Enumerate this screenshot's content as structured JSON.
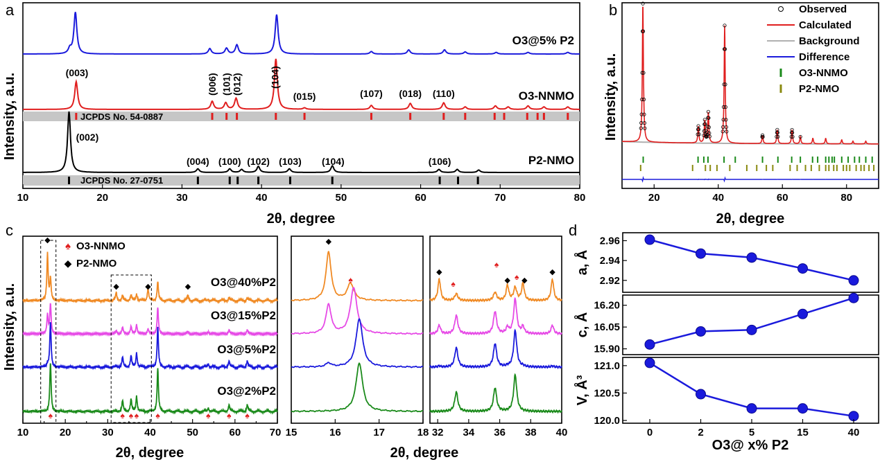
{
  "chart_data": [
    {
      "panel": "a",
      "type": "line",
      "xlabel": "2θ, degree",
      "ylabel": "Intensity, a.u.",
      "xlim": [
        10,
        80
      ],
      "xticks": [
        10,
        20,
        30,
        40,
        50,
        60,
        70,
        80
      ],
      "series": [
        {
          "name": "O3@5% P2",
          "color": "#1a1adc",
          "peaks": [
            [
              15.9,
              0.12
            ],
            [
              16.6,
              1.0
            ],
            [
              33.5,
              0.13
            ],
            [
              35.6,
              0.14
            ],
            [
              36.9,
              0.22
            ],
            [
              41.9,
              0.95
            ],
            [
              53.8,
              0.06
            ],
            [
              58.5,
              0.1
            ],
            [
              63.0,
              0.1
            ],
            [
              65.6,
              0.05
            ],
            [
              69.5,
              0.04
            ],
            [
              73.5,
              0.04
            ],
            [
              78.5,
              0.04
            ]
          ]
        },
        {
          "name": "O3-NNMO",
          "color": "#e01e1e",
          "peaks": [
            [
              16.7,
              0.55
            ],
            [
              33.8,
              0.16
            ],
            [
              35.5,
              0.13
            ],
            [
              36.8,
              0.22
            ],
            [
              41.8,
              1.0
            ],
            [
              45.4,
              0.03
            ],
            [
              53.8,
              0.08
            ],
            [
              58.7,
              0.12
            ],
            [
              62.9,
              0.13
            ],
            [
              65.6,
              0.05
            ],
            [
              69.4,
              0.07
            ],
            [
              71.0,
              0.05
            ],
            [
              73.5,
              0.07
            ],
            [
              75.5,
              0.05
            ],
            [
              78.5,
              0.05
            ]
          ]
        },
        {
          "name": "P2-NMO",
          "color": "#000000",
          "peaks": [
            [
              15.8,
              1.0
            ],
            [
              32.0,
              0.06
            ],
            [
              36.0,
              0.06
            ],
            [
              37.5,
              0.05
            ],
            [
              39.6,
              0.1
            ],
            [
              43.5,
              0.06
            ],
            [
              48.9,
              0.11
            ],
            [
              62.3,
              0.05
            ],
            [
              64.6,
              0.05
            ],
            [
              67.3,
              0.04
            ]
          ]
        }
      ],
      "series_labels": [
        "O3@5% P2",
        "O3-NNMO",
        "P2-NMO"
      ],
      "references": [
        {
          "label": "JCPDS No. 54-0887",
          "color": "#e01e1e",
          "positions": [
            16.7,
            33.8,
            35.6,
            36.9,
            41.8,
            45.4,
            53.8,
            58.7,
            62.9,
            65.6,
            69.3,
            70.5,
            73.4,
            74.7,
            75.5,
            78.5
          ]
        },
        {
          "label": "JCPDS No. 27-0751",
          "color": "#000000",
          "positions": [
            15.8,
            32.0,
            36.0,
            37.0,
            39.6,
            43.6,
            48.9,
            62.4,
            64.7,
            67.2
          ]
        }
      ],
      "annotations_o3": [
        {
          "text": "(003)",
          "x": 16.8
        },
        {
          "text": "(006)",
          "x": 33.8,
          "rotated": true
        },
        {
          "text": "(101)",
          "x": 35.6,
          "rotated": true
        },
        {
          "text": "(012)",
          "x": 36.9,
          "rotated": true
        },
        {
          "text": "(104)",
          "x": 41.7,
          "rotated": true
        },
        {
          "text": "(015)",
          "x": 45.4
        },
        {
          "text": "(107)",
          "x": 53.8
        },
        {
          "text": "(018)",
          "x": 58.7
        },
        {
          "text": "(110)",
          "x": 62.9
        }
      ],
      "annotations_p2": [
        {
          "text": "(002)",
          "x": 18.1
        },
        {
          "text": "(004)",
          "x": 32.0
        },
        {
          "text": "(100)",
          "x": 36.0
        },
        {
          "text": "(102)",
          "x": 39.6
        },
        {
          "text": "(103)",
          "x": 43.6
        },
        {
          "text": "(104)",
          "x": 49.0
        },
        {
          "text": "(106)",
          "x": 62.4
        }
      ]
    },
    {
      "panel": "b",
      "type": "scatter",
      "xlabel": "2θ, degree",
      "ylabel": "Intensity, a.u.",
      "xlim": [
        10,
        90
      ],
      "xticks": [
        20,
        40,
        60,
        80
      ],
      "legend": [
        "Observed",
        "Calculated",
        "Background",
        "Difference",
        "O3-NNMO",
        "P2-NMO"
      ],
      "legend_colors": [
        "#000000",
        "#e01e1e",
        "#b0b0b0",
        "#1a1adc",
        "#1a8a1a",
        "#8a8a10"
      ],
      "peaks": [
        [
          16.5,
          1.0
        ],
        [
          33.8,
          0.12
        ],
        [
          35.8,
          0.16
        ],
        [
          36.9,
          0.22
        ],
        [
          42.0,
          0.85
        ],
        [
          53.8,
          0.06
        ],
        [
          58.4,
          0.1
        ],
        [
          63.0,
          0.1
        ],
        [
          65.6,
          0.05
        ],
        [
          69.5,
          0.04
        ],
        [
          73.5,
          0.04
        ],
        [
          78.5,
          0.03
        ],
        [
          82.0,
          0.02
        ],
        [
          86.0,
          0.02
        ]
      ],
      "o3_ticks": [
        16.6,
        33.7,
        35.5,
        36.8,
        41.8,
        45.3,
        53.8,
        58.6,
        62.9,
        65.6,
        69.4,
        71.0,
        73.5,
        74.5,
        75.5,
        76.2,
        78.5,
        80.5,
        82.5,
        84.0,
        86.0,
        88.0
      ],
      "p2_ticks": [
        15.8,
        32.0,
        36.0,
        37.5,
        39.6,
        43.6,
        48.9,
        52.0,
        55.0,
        57.0,
        62.4,
        64.6,
        67.2,
        69.0,
        71.5,
        73.5,
        74.5,
        76.0,
        77.0,
        79.0,
        80.0,
        81.0,
        83.0,
        84.5,
        85.5,
        87.0,
        88.5
      ]
    },
    {
      "panel": "c",
      "type": "line",
      "xlabel": "2θ, degree",
      "ylabel": "Intensity, a.u.",
      "subplots": [
        {
          "xlim": [
            10,
            70
          ],
          "xticks": [
            10,
            15,
            20,
            25,
            30,
            35,
            40,
            45,
            50,
            55,
            60,
            65,
            70
          ]
        },
        {
          "xlim": [
            15,
            18
          ],
          "xticks": [
            15,
            16,
            17,
            18
          ]
        },
        {
          "xlim": [
            31.5,
            40
          ],
          "xticks": [
            32,
            34,
            36,
            38,
            40
          ]
        }
      ],
      "legend": [
        "O3-NNMO",
        "P2-NMO"
      ],
      "series": [
        {
          "name": "O3@40%P2",
          "color": "#f08a24",
          "p2_amp": 1.0,
          "o3_amp": 0.45
        },
        {
          "name": "O3@15%P2",
          "color": "#e64ae6",
          "p2_amp": 0.55,
          "o3_amp": 0.85
        },
        {
          "name": "O3@5%P2",
          "color": "#1a1adc",
          "p2_amp": 0.08,
          "o3_amp": 1.0
        },
        {
          "name": "O3@2%P2",
          "color": "#1a8a1a",
          "p2_amp": 0.0,
          "o3_amp": 1.0
        }
      ],
      "o3_peaks_main": [
        [
          16.5,
          1.0
        ],
        [
          33.5,
          0.22
        ],
        [
          35.5,
          0.25
        ],
        [
          36.8,
          0.32
        ],
        [
          41.8,
          0.9
        ],
        [
          53.7,
          0.08
        ],
        [
          58.6,
          0.14
        ],
        [
          62.9,
          0.14
        ]
      ],
      "p2_peaks_main": [
        [
          15.8,
          1.0
        ],
        [
          32.0,
          0.18
        ],
        [
          39.5,
          0.25
        ],
        [
          48.9,
          0.12
        ]
      ],
      "o3_markers_x": [
        16.5,
        33.5,
        35.5,
        36.8,
        41.8,
        53.7,
        58.6,
        62.9
      ],
      "p2_markers_x": [
        15.8,
        32.0,
        39.5,
        48.9
      ],
      "o3_peaks_zoom2": [
        [
          33.2,
          0.45
        ],
        [
          35.7,
          0.55
        ],
        [
          37.0,
          0.85
        ]
      ],
      "p2_peaks_zoom2": [
        [
          32.1,
          0.5
        ],
        [
          36.5,
          0.35
        ],
        [
          37.5,
          0.4
        ],
        [
          39.4,
          0.5
        ]
      ],
      "zoom2_markers_o3": [
        33.0,
        35.8,
        37.1
      ],
      "zoom2_markers_p2": [
        32.1,
        36.5,
        37.6,
        39.4
      ]
    },
    {
      "panel": "d",
      "type": "line",
      "xlabel": "O3@ x% P2",
      "categories": [
        "0",
        "2",
        "5",
        "15",
        "40"
      ],
      "color": "#1a1adc",
      "subplots": [
        {
          "ylabel": "a, Å",
          "values": [
            2.961,
            2.947,
            2.943,
            2.932,
            2.92
          ],
          "ylim": [
            2.908,
            2.968
          ],
          "yticks": [
            "2.96",
            "2.94",
            "2.92"
          ],
          "ytick_values": [
            2.96,
            2.94,
            2.92
          ]
        },
        {
          "ylabel": "c, Å",
          "values": [
            15.93,
            16.02,
            16.03,
            16.14,
            16.25
          ],
          "ylim": [
            15.86,
            16.27
          ],
          "yticks": [
            "16.20",
            "16.05",
            "15.90"
          ],
          "ytick_values": [
            16.2,
            16.05,
            15.9
          ]
        },
        {
          "ylabel": "V, Å³",
          "values": [
            121.05,
            120.48,
            120.22,
            120.22,
            120.08
          ],
          "ylim": [
            119.95,
            121.15
          ],
          "yticks": [
            "121.0",
            "120.5",
            "120.0"
          ],
          "ytick_values": [
            121.0,
            120.5,
            120.0
          ]
        }
      ]
    }
  ],
  "panel_labels": {
    "a": "a",
    "b": "b",
    "c": "c",
    "d": "d"
  },
  "common": {
    "ylabel": "Intensity, a.u.",
    "xlabel": "2θ, degree",
    "d_xlabel": "O3@ x% P2",
    "legend_c_o3": "O3-NNMO",
    "legend_c_p2": "P2-NMO",
    "c_labels": [
      "O3@40%P2",
      "O3@15%P2",
      "O3@5%P2",
      "O3@2%P2"
    ],
    "d_ylabels": [
      "a, Å",
      "c, Å",
      "V, Å³"
    ]
  }
}
